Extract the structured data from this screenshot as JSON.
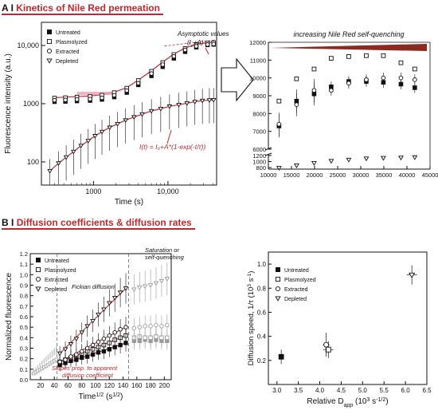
{
  "panel_a": {
    "label": "A",
    "title": "Kinetics of Nile Red permeation"
  },
  "panel_b": {
    "label": "B",
    "title": "Diffusion coefficients & diffusion rates"
  },
  "colors": {
    "accent_red": "#c0282d",
    "gray_series": "#9a9a9a",
    "black": "#111111"
  },
  "chart_data": [
    {
      "id": "a_left",
      "type": "scatter",
      "xlabel": "Time (s)",
      "ylabel": "Fluorescence intensity (a.u.)",
      "xscale": "log",
      "yscale": "log",
      "xlim": [
        200,
        45000
      ],
      "ylim": [
        40,
        25000
      ],
      "xticks": [
        {
          "v": 1000,
          "label": "1000"
        },
        {
          "v": 10000,
          "label": "10,000"
        }
      ],
      "yticks": [
        {
          "v": 100,
          "label": "100"
        },
        {
          "v": 1000,
          "label": "1000"
        },
        {
          "v": 10000,
          "label": "10,000"
        }
      ],
      "legend": [
        "Untreated",
        "Plasmolyzed",
        "Extracted",
        "Depleted"
      ],
      "legend_position": "top-left",
      "annotations": {
        "asymptotic": "Asymptotic values",
        "asymptotic_formula": "(I",
        "asymptotic_sub": "c",
        "asymptotic_end": "+A)",
        "fit_formula": "I(t) = I₀+A*(1-exp(-t/τ))"
      },
      "series": [
        {
          "name": "Untreated",
          "marker": "square-filled",
          "x": [
            300,
            420,
            600,
            900,
            1300,
            1900,
            2800,
            4000,
            6000,
            8500,
            12000,
            17000,
            24000,
            34000,
            41000
          ],
          "y": [
            1080,
            1090,
            1110,
            1130,
            1180,
            1300,
            1550,
            2100,
            3000,
            4300,
            6000,
            7800,
            9300,
            10200,
            10400
          ]
        },
        {
          "name": "Plasmolyzed",
          "marker": "square-open",
          "x": [
            300,
            420,
            600,
            900,
            1300,
            1900,
            2800,
            4000,
            6000,
            8500,
            12000,
            17000,
            24000,
            34000,
            41000
          ],
          "y": [
            1250,
            1270,
            1300,
            1330,
            1400,
            1550,
            1850,
            2500,
            3600,
            5100,
            7000,
            8900,
            10300,
            11000,
            11200
          ]
        },
        {
          "name": "Extracted",
          "marker": "circle-open",
          "x": [
            300,
            420,
            600,
            900,
            1300,
            1900,
            2800,
            4000,
            6000,
            8500,
            12000,
            17000,
            24000,
            34000,
            41000
          ],
          "y": [
            1150,
            1160,
            1180,
            1200,
            1260,
            1400,
            1680,
            2250,
            3300,
            4700,
            6500,
            8400,
            9700,
            10400,
            10600
          ]
        },
        {
          "name": "Depleted",
          "marker": "triangle-open",
          "x": [
            260,
            340,
            430,
            540,
            680,
            850,
            1050,
            1300,
            1650,
            2100,
            2700,
            3500,
            4500,
            6000,
            8000,
            10500,
            14000,
            18000,
            23000,
            29000,
            36000,
            41000
          ],
          "y": [
            70,
            95,
            120,
            150,
            190,
            230,
            280,
            330,
            390,
            450,
            520,
            590,
            660,
            750,
            820,
            900,
            960,
            1020,
            1080,
            1130,
            1150,
            1160
          ]
        }
      ]
    },
    {
      "id": "a_right",
      "type": "scatter",
      "title": "increasing Nile Red self-quenching",
      "xlim": [
        10000,
        45000
      ],
      "xticks": [
        10000,
        15000,
        20000,
        25000,
        30000,
        35000,
        40000,
        45000
      ],
      "yticks_top": [
        6000,
        7000,
        8000,
        9000,
        10000,
        11000,
        12000
      ],
      "yticks_bottom": [
        800,
        1000,
        1200
      ],
      "y_axis_break": true,
      "series": [
        {
          "name": "Untreated",
          "marker": "square-filled",
          "x": [
            12300,
            16100,
            19900,
            23600,
            27400,
            31200,
            34900,
            38700,
            41700
          ],
          "y": [
            7300,
            8700,
            9100,
            9500,
            9800,
            9800,
            9750,
            9650,
            9450
          ]
        },
        {
          "name": "Plasmolyzed",
          "marker": "square-open",
          "x": [
            12300,
            16100,
            19900,
            23600,
            27400,
            31200,
            34900,
            38700,
            41700
          ],
          "y": [
            8700,
            9950,
            10500,
            11100,
            11200,
            11250,
            11250,
            10850,
            10500
          ]
        },
        {
          "name": "Extracted",
          "marker": "circle-open",
          "x": [
            12300,
            16100,
            19900,
            23600,
            27400,
            31200,
            34900,
            38700,
            41700
          ],
          "y": [
            7400,
            8500,
            9300,
            9300,
            9700,
            9900,
            10000,
            10000,
            9900
          ]
        },
        {
          "name": "Depleted",
          "marker": "triangle-open",
          "x": [
            12300,
            16100,
            19900,
            23600,
            27400,
            31200,
            34900,
            38700,
            41700
          ],
          "y": [
            790,
            870,
            950,
            1020,
            1060,
            1100,
            1120,
            1130,
            1140
          ]
        }
      ]
    },
    {
      "id": "b_left",
      "type": "scatter",
      "xlabel": "Time",
      "xlabel_sup": "1/2",
      "xlabel_unit": " (s",
      "xlabel_unit_sup": "1/2",
      "xlabel_close": ")",
      "ylabel": "Normalized fluorescence",
      "xlim": [
        5,
        210
      ],
      "ylim": [
        0,
        1.2
      ],
      "xticks": [
        20,
        40,
        60,
        80,
        100,
        120,
        140,
        160,
        180,
        200
      ],
      "yticks": [
        0.0,
        0.1,
        0.2,
        0.3,
        0.4,
        0.5,
        0.6,
        0.7,
        0.8,
        0.9,
        1.0,
        1.1,
        1.2
      ],
      "legend": [
        "Untreated",
        "Plasmolyzed",
        "Extracted",
        "Depleted"
      ],
      "legend_position": "top-left",
      "annotations": {
        "fickian": "Fickian diffusion",
        "saturation": "Saturation or",
        "saturation2": "self-quenching",
        "slopes": "Slopes prop. to apparent",
        "slopes2": "diffusion coefficient"
      },
      "series": [
        {
          "name": "Untreated",
          "marker": "square-filled",
          "x": [
            48,
            56,
            64,
            72,
            80,
            88,
            96,
            104,
            112,
            120,
            128,
            136,
            144,
            156,
            164,
            172,
            180,
            188,
            196,
            204
          ],
          "y": [
            0.14,
            0.16,
            0.18,
            0.19,
            0.21,
            0.22,
            0.24,
            0.26,
            0.27,
            0.29,
            0.31,
            0.33,
            0.35,
            0.37,
            0.37,
            0.38,
            0.37,
            0.38,
            0.37,
            0.37
          ]
        },
        {
          "name": "Plasmolyzed",
          "marker": "square-open",
          "x": [
            48,
            56,
            64,
            72,
            80,
            88,
            96,
            104,
            112,
            120,
            128,
            136,
            144,
            156,
            164,
            172,
            180,
            188,
            196,
            204
          ],
          "y": [
            0.17,
            0.19,
            0.21,
            0.23,
            0.25,
            0.27,
            0.29,
            0.31,
            0.33,
            0.35,
            0.38,
            0.4,
            0.42,
            0.4,
            0.41,
            0.4,
            0.4,
            0.41,
            0.4,
            0.4
          ]
        },
        {
          "name": "Extracted",
          "marker": "circle-open",
          "x": [
            48,
            56,
            64,
            72,
            80,
            88,
            96,
            104,
            112,
            120,
            128,
            136,
            144,
            156,
            164,
            172,
            180,
            188,
            196,
            204
          ],
          "y": [
            0.17,
            0.19,
            0.22,
            0.24,
            0.27,
            0.3,
            0.33,
            0.36,
            0.39,
            0.42,
            0.45,
            0.48,
            0.5,
            0.49,
            0.5,
            0.51,
            0.51,
            0.52,
            0.51,
            0.52
          ]
        },
        {
          "name": "Depleted",
          "marker": "triangle-open",
          "x": [
            48,
            56,
            64,
            72,
            80,
            88,
            96,
            104,
            112,
            120,
            128,
            136,
            144,
            156,
            164,
            172,
            180,
            188,
            196,
            204
          ],
          "y": [
            0.25,
            0.29,
            0.34,
            0.39,
            0.45,
            0.51,
            0.56,
            0.62,
            0.67,
            0.73,
            0.78,
            0.83,
            0.87,
            0.86,
            0.88,
            0.89,
            0.9,
            0.92,
            0.94,
            0.96
          ]
        }
      ],
      "fits": [
        {
          "name": "Untreated",
          "x": [
            48,
            144
          ],
          "y": [
            0.14,
            0.35
          ]
        },
        {
          "name": "Plasmolyzed",
          "x": [
            48,
            144
          ],
          "y": [
            0.17,
            0.42
          ]
        },
        {
          "name": "Extracted",
          "x": [
            48,
            144
          ],
          "y": [
            0.17,
            0.5
          ]
        },
        {
          "name": "Depleted",
          "x": [
            48,
            144
          ],
          "y": [
            0.25,
            0.87
          ]
        }
      ],
      "vlines": [
        44,
        148
      ]
    },
    {
      "id": "b_right",
      "type": "scatter",
      "xlabel": "Relative D",
      "xlabel_sub": "app",
      "xlabel_unit": " (10",
      "xlabel_unit_sup": "3",
      "xlabel_unit_end": " s",
      "xlabel_unit_sup2": "-1/2",
      "xlabel_close": ")",
      "ylabel": "Diffusion speed, 1/τ (10",
      "ylabel_sup": "3",
      "ylabel_end": " s",
      "ylabel_sup2": "-1",
      "ylabel_close": ")",
      "xlim": [
        2.8,
        6.5
      ],
      "ylim": [
        0.0,
        1.1
      ],
      "xticks": [
        3.0,
        3.5,
        4.0,
        4.5,
        5.0,
        5.5,
        6.0,
        6.5
      ],
      "yticks": [
        0.2,
        0.4,
        0.6,
        0.8,
        1.0
      ],
      "legend": [
        "Untreated",
        "Plasmolyzed",
        "Extracted",
        "Depleted"
      ],
      "legend_position": "top-left",
      "series": [
        {
          "name": "Untreated",
          "marker": "square-filled",
          "x": [
            3.1
          ],
          "y": [
            0.23
          ]
        },
        {
          "name": "Plasmolyzed",
          "marker": "square-open",
          "x": [
            4.2
          ],
          "y": [
            0.29
          ]
        },
        {
          "name": "Extracted",
          "marker": "circle-open",
          "x": [
            4.15
          ],
          "y": [
            0.33
          ]
        },
        {
          "name": "Depleted",
          "marker": "triangle-open",
          "x": [
            6.15
          ],
          "y": [
            0.91
          ]
        }
      ]
    }
  ]
}
